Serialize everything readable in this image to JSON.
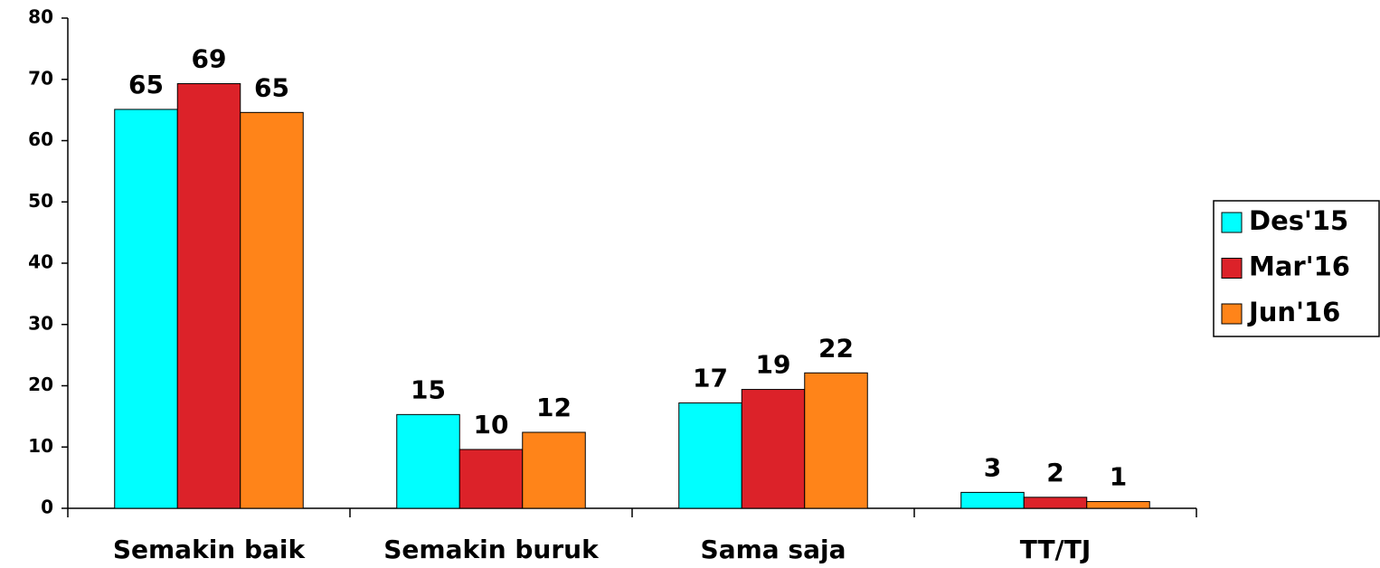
{
  "chart_data": {
    "type": "bar",
    "categories": [
      "Semakin baik",
      "Semakin buruk",
      "Sama saja",
      "TT/TJ"
    ],
    "series": [
      {
        "name": "Des'15",
        "color": "#00ffff",
        "values": [
          65.1,
          15.3,
          17.2,
          2.6
        ],
        "value_labels": [
          "65",
          "15",
          "17",
          "3"
        ]
      },
      {
        "name": "Mar'16",
        "color": "#dc2229",
        "values": [
          69.3,
          9.6,
          19.4,
          1.8
        ],
        "value_labels": [
          "69",
          "10",
          "19",
          "2"
        ]
      },
      {
        "name": "Jun'16",
        "color": "#ff8419",
        "values": [
          64.6,
          12.4,
          22.1,
          1.1
        ],
        "value_labels": [
          "65",
          "12",
          "22",
          "1"
        ]
      }
    ],
    "ylim": [
      0,
      80
    ],
    "yticks": [
      0,
      10,
      20,
      30,
      40,
      50,
      60,
      70,
      80
    ],
    "legend": "right"
  }
}
